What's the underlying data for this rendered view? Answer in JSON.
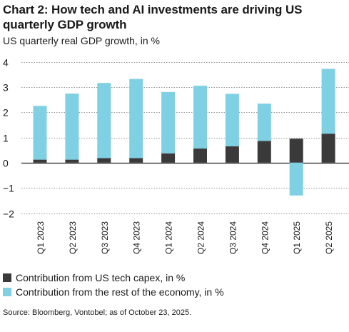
{
  "header": {
    "title": "Chart 2: How tech and AI investments are driving US quarterly GDP growth",
    "subtitle": "US quarterly real GDP growth, in %"
  },
  "chart_data": {
    "type": "bar",
    "stacked": true,
    "categories": [
      "Q1 2023",
      "Q2 2023",
      "Q3 2023",
      "Q4 2023",
      "Q1 2024",
      "Q2 2024",
      "Q3 2024",
      "Q4 2024",
      "Q1 2025",
      "Q2 2025"
    ],
    "series": [
      {
        "name": "Contribution from US tech capex, in %",
        "color": "#3a3a3a",
        "values": [
          0.12,
          0.12,
          0.18,
          0.18,
          0.37,
          0.56,
          0.65,
          0.86,
          0.95,
          1.15
        ]
      },
      {
        "name": "Contribution from the rest of the economy, in %",
        "color": "#7fd0e3",
        "values": [
          2.13,
          2.62,
          2.98,
          3.14,
          2.43,
          2.49,
          2.08,
          1.48,
          -1.3,
          2.57
        ]
      }
    ],
    "ylim": [
      -2,
      4
    ],
    "yticks": [
      "−2",
      "−1",
      "0",
      "1",
      "2",
      "3",
      "4"
    ],
    "ytick_values": [
      -2,
      -1,
      0,
      1,
      2,
      3,
      4
    ],
    "grid": true,
    "legend_position": "bottom-left"
  },
  "footer": {
    "source": "Source: Bloomberg, Vontobel; as of October 23, 2025."
  }
}
